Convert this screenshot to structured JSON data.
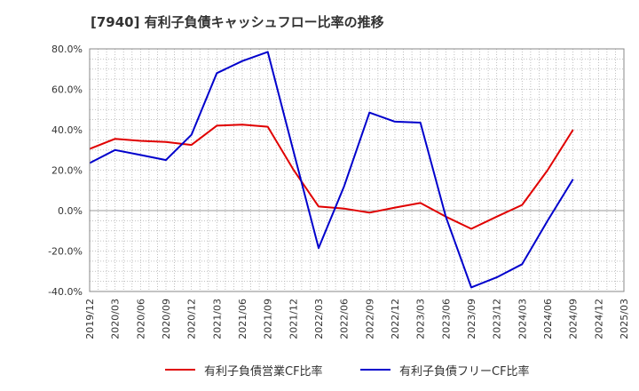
{
  "title": "[7940]  有利子負債キャッシュフロー比率の推移",
  "chart_data": {
    "type": "line",
    "title": "[7940]  有利子負債キャッシュフロー比率の推移",
    "xlabel": "",
    "ylabel": "",
    "ylim": [
      -40,
      80
    ],
    "yticks": [
      -40,
      -20,
      0,
      20,
      40,
      60,
      80
    ],
    "ytick_labels": [
      "-40.0%",
      "-20.0%",
      "0.0%",
      "20.0%",
      "40.0%",
      "60.0%",
      "80.0%"
    ],
    "x_tick_labels": [
      "2019/12",
      "2020/03",
      "2020/06",
      "2020/09",
      "2020/12",
      "2021/03",
      "2021/06",
      "2021/09",
      "2021/12",
      "2022/03",
      "2022/06",
      "2022/09",
      "2022/12",
      "2023/03",
      "2023/06",
      "2023/09",
      "2023/12",
      "2024/03",
      "2024/06",
      "2024/09",
      "2024/12",
      "2025/03"
    ],
    "grid": true,
    "legend_position": "bottom",
    "series": [
      {
        "name": "有利子負債営業CF比率",
        "color": "#e00000",
        "x": [
          "2019/12",
          "2020/03",
          "2020/06",
          "2020/09",
          "2020/12",
          "2021/03",
          "2021/06",
          "2021/09",
          "2021/12",
          "2022/03",
          "2022/06",
          "2022/09",
          "2022/12",
          "2023/03",
          "2023/06",
          "2023/09",
          "2023/12",
          "2024/03",
          "2024/06",
          "2024/09"
        ],
        "values": [
          30.5,
          35.5,
          34.5,
          34.0,
          32.5,
          42.0,
          42.5,
          41.5,
          20.5,
          2.0,
          1.0,
          -1.0,
          1.5,
          3.8,
          -3.0,
          -9.0,
          -3.0,
          2.8,
          20.0,
          40.0
        ]
      },
      {
        "name": "有利子負債フリーCF比率",
        "color": "#0000cc",
        "x": [
          "2019/12",
          "2020/03",
          "2020/06",
          "2020/09",
          "2020/12",
          "2021/03",
          "2021/06",
          "2021/09",
          "2021/12",
          "2022/03",
          "2022/06",
          "2022/09",
          "2022/12",
          "2023/03",
          "2023/06",
          "2023/09",
          "2023/12",
          "2024/03",
          "2024/06",
          "2024/09"
        ],
        "values": [
          23.5,
          30.0,
          27.5,
          25.0,
          37.5,
          68.0,
          74.0,
          78.5,
          30.0,
          -18.5,
          12.0,
          48.5,
          44.0,
          43.5,
          -3.0,
          -38.0,
          -33.0,
          -26.5,
          -5.0,
          15.5
        ]
      }
    ]
  }
}
